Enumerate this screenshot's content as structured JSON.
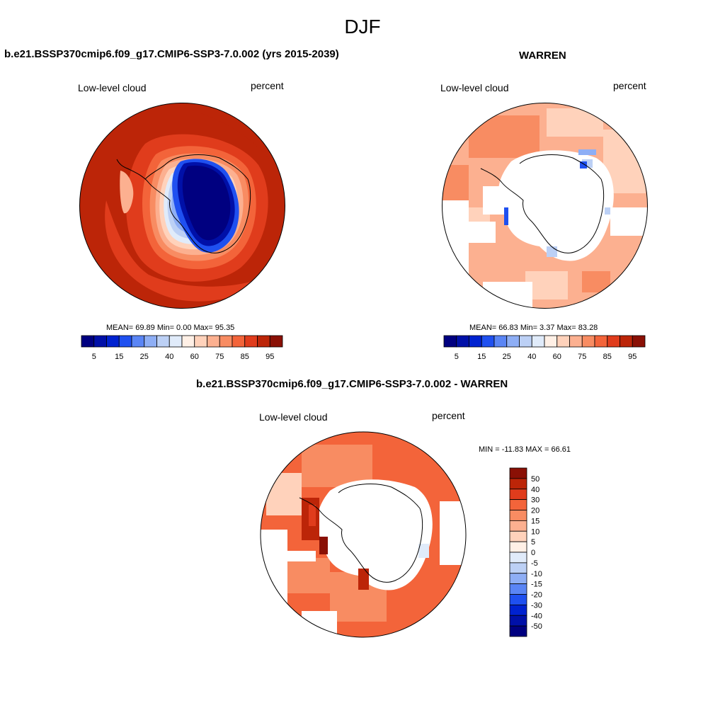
{
  "suptitle": "DJF",
  "panels": {
    "model": {
      "title": "b.e21.BSSP370cmip6.f09_g17.CMIP6-SSP3-7.0.002 (yrs 2015-2039)",
      "left_label": "Low-level cloud",
      "right_label": "percent",
      "stats": "MEAN=  69.89  Min=   0.00  Max=  95.35"
    },
    "obs": {
      "title": "WARREN",
      "left_label": "Low-level cloud",
      "right_label": "percent",
      "stats": "MEAN=  66.83  Min=   3.37  Max=  83.28"
    },
    "diff": {
      "title": "b.e21.BSSP370cmip6.f09_g17.CMIP6-SSP3-7.0.002 - WARREN",
      "left_label": "Low-level cloud",
      "right_label": "percent",
      "stats": "MIN = -11.83 MAX =  66.61"
    }
  },
  "colorbar_abs": {
    "tick_labels": [
      "5",
      "15",
      "25",
      "40",
      "60",
      "75",
      "85",
      "95"
    ],
    "colors": [
      "#000080",
      "#0010a8",
      "#0022d0",
      "#1f50f0",
      "#5a85f5",
      "#8eaef5",
      "#bcd0f5",
      "#e0ebfa",
      "#fff0e6",
      "#ffd2bb",
      "#fcb090",
      "#f88c62",
      "#f3643a",
      "#e03c1c",
      "#bc2508",
      "#8a1005"
    ]
  },
  "colorbar_diff": {
    "tick_labels": [
      "50",
      "40",
      "30",
      "20",
      "15",
      "10",
      "5",
      "0",
      "-5",
      "-10",
      "-15",
      "-20",
      "-30",
      "-40",
      "-50"
    ],
    "colors": [
      "#8a1005",
      "#bc2508",
      "#e03c1c",
      "#f3643a",
      "#f88c62",
      "#fcb090",
      "#ffd2bb",
      "#fff0e6",
      "#e0ebfa",
      "#bcd0f5",
      "#8eaef5",
      "#5a85f5",
      "#1f50f0",
      "#0022d0",
      "#0010a8",
      "#000080"
    ]
  },
  "chart_data": [
    {
      "type": "heatmap",
      "title": "b.e21.BSSP370cmip6.f09_g17.CMIP6-SSP3-7.0.002 (yrs 2015-2039)",
      "variable": "Low-level cloud",
      "units": "percent",
      "projection": "south polar stereographic",
      "mean": 69.89,
      "min": 0.0,
      "max": 95.35,
      "contour_levels": [
        5,
        10,
        15,
        20,
        25,
        30,
        40,
        50,
        60,
        65,
        70,
        75,
        80,
        85,
        90,
        95
      ]
    },
    {
      "type": "heatmap",
      "title": "WARREN",
      "variable": "Low-level cloud",
      "units": "percent",
      "projection": "south polar stereographic",
      "mean": 66.83,
      "min": 3.37,
      "max": 83.28,
      "contour_levels": [
        5,
        10,
        15,
        20,
        25,
        30,
        40,
        50,
        60,
        65,
        70,
        75,
        80,
        85,
        90,
        95
      ]
    },
    {
      "type": "heatmap",
      "title": "b.e21.BSSP370cmip6.f09_g17.CMIP6-SSP3-7.0.002 - WARREN",
      "variable": "Low-level cloud",
      "units": "percent",
      "projection": "south polar stereographic",
      "min": -11.83,
      "max": 66.61,
      "contour_levels": [
        -50,
        -40,
        -30,
        -20,
        -15,
        -10,
        -5,
        0,
        5,
        10,
        15,
        20,
        30,
        40,
        50
      ]
    }
  ]
}
